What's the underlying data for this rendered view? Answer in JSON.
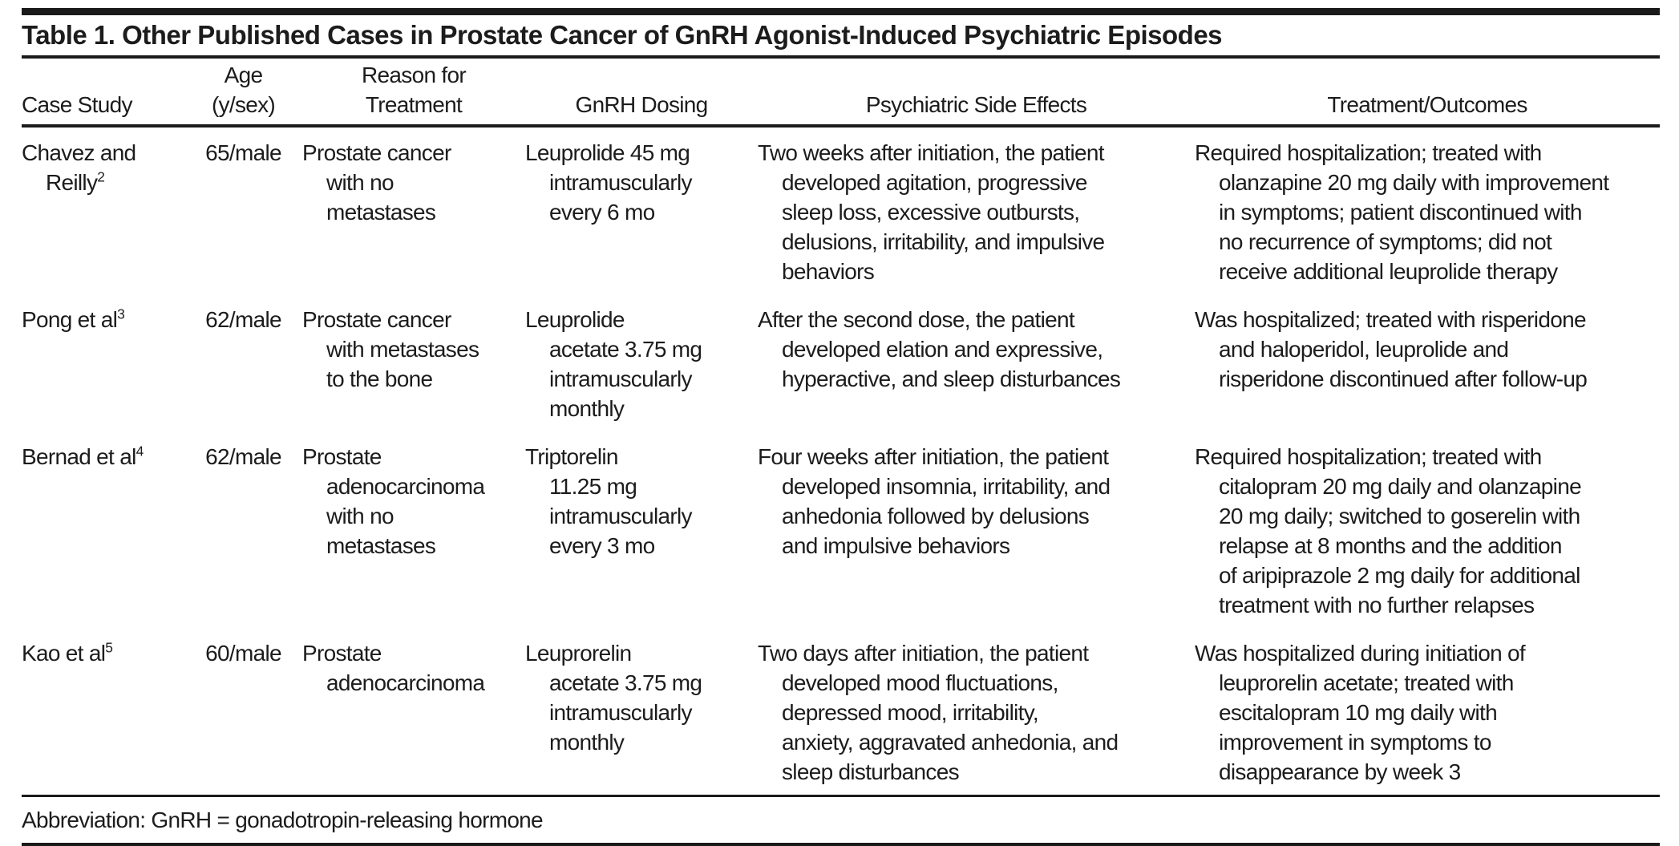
{
  "title": "Table 1. Other Published Cases in Prostate Cancer of GnRH Agonist-Induced Psychiatric Episodes",
  "table": {
    "headers": {
      "case_study": "Case Study",
      "age": "Age\n(y/sex)",
      "reason": "Reason for\nTreatment",
      "dosing": "GnRH Dosing",
      "side_effects": "Psychiatric Side Effects",
      "outcomes": "Treatment/Outcomes"
    },
    "rows": [
      {
        "case": {
          "name": "Chavez and\nReilly",
          "ref": "2"
        },
        "age": "65/male",
        "reason": "Prostate cancer\nwith no\nmetastases",
        "dosing": "Leuprolide 45 mg\nintramuscularly\nevery 6 mo",
        "side_effects": "Two weeks after initiation, the patient\ndeveloped agitation, progressive\nsleep loss, excessive outbursts,\ndelusions, irritability, and impulsive\nbehaviors",
        "outcomes": "Required hospitalization; treated with\nolanzapine 20 mg daily with improvement\nin symptoms; patient discontinued with\nno recurrence of symptoms; did not\nreceive additional leuprolide therapy"
      },
      {
        "case": {
          "name": "Pong et al",
          "ref": "3"
        },
        "age": "62/male",
        "reason": "Prostate cancer\nwith metastases\nto the bone",
        "dosing": "Leuprolide\nacetate 3.75 mg\nintramuscularly\nmonthly",
        "side_effects": "After the second dose, the patient\ndeveloped elation and expressive,\nhyperactive, and sleep disturbances",
        "outcomes": "Was hospitalized; treated with risperidone\nand haloperidol, leuprolide and\nrisperidone discontinued after follow-up"
      },
      {
        "case": {
          "name": "Bernad et al",
          "ref": "4"
        },
        "age": "62/male",
        "reason": "Prostate\nadenocarcinoma\nwith no\nmetastases",
        "dosing": "Triptorelin\n11.25 mg\nintramuscularly\nevery 3 mo",
        "side_effects": "Four weeks after initiation, the patient\ndeveloped insomnia, irritability, and\nanhedonia followed by delusions\nand impulsive behaviors",
        "outcomes": "Required hospitalization; treated with\ncitalopram 20 mg daily and olanzapine\n20 mg daily; switched to goserelin with\nrelapse at 8 months and the addition\nof aripiprazole 2 mg daily for additional\ntreatment with no further relapses"
      },
      {
        "case": {
          "name": "Kao et al",
          "ref": "5"
        },
        "age": "60/male",
        "reason": "Prostate\nadenocarcinoma",
        "dosing": "Leuprorelin\nacetate 3.75 mg\nintramuscularly\nmonthly",
        "side_effects": "Two days after initiation, the patient\ndeveloped mood fluctuations,\ndepressed mood, irritability,\nanxiety, aggravated anhedonia, and\nsleep disturbances",
        "outcomes": "Was hospitalized during initiation of\nleuprorelin acetate; treated with\nescitalopram 10 mg daily with\nimprovement in symptoms to\ndisappearance by week 3"
      }
    ]
  },
  "footnote": "Abbreviation: GnRH = gonadotropin-releasing hormone",
  "colors": {
    "text": "#1c1c1c",
    "rule": "#1a1a1a",
    "background": "#ffffff"
  }
}
